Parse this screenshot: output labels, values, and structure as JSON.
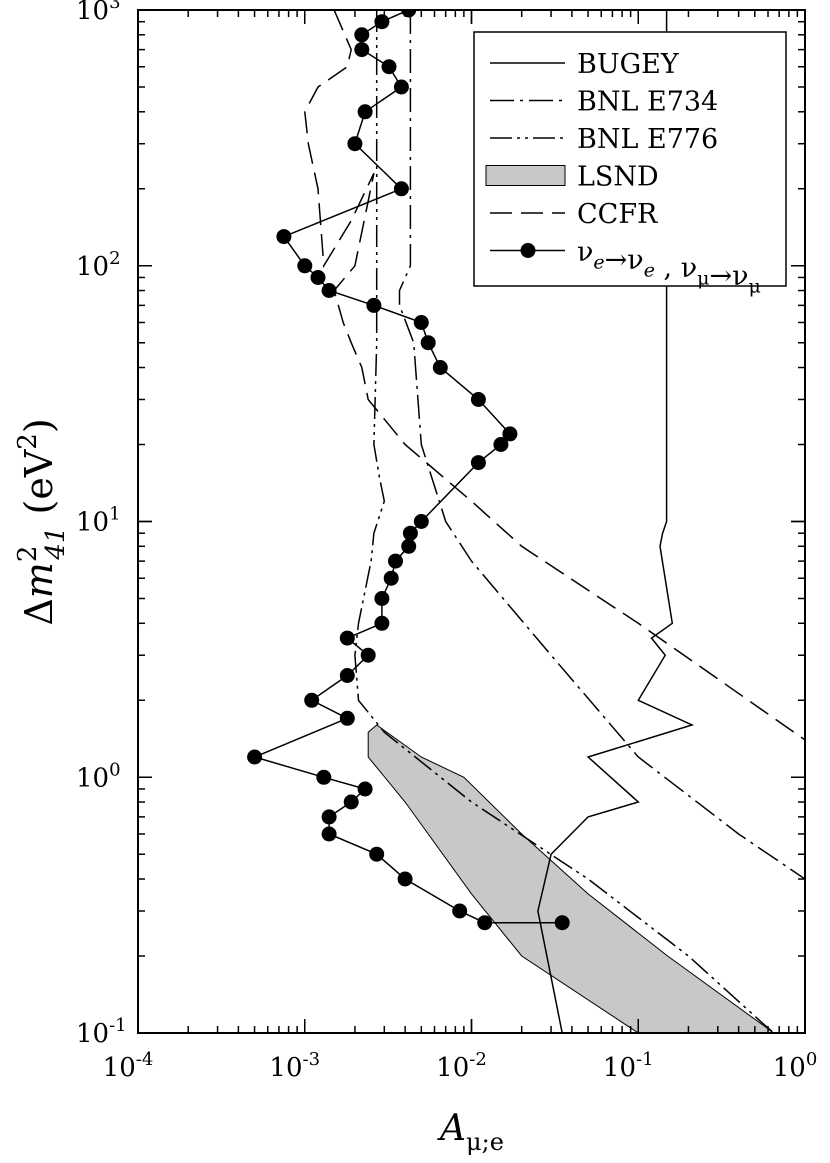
{
  "chart_data": {
    "type": "line",
    "xlabel": {
      "main": "A",
      "sub": "μ;e"
    },
    "ylabel": {
      "prefix": "Δ",
      "var": "m",
      "sup": "2",
      "sub": "41",
      "unit": " (eV",
      "unit_sup": "2",
      "unit_close": ")"
    },
    "x_scale": "log",
    "y_scale": "log",
    "xlim": [
      0.0001,
      1
    ],
    "ylim": [
      0.1,
      1000
    ],
    "grid": false,
    "legend_position": "top-right",
    "x_ticks": [
      {
        "value": 0.0001,
        "base": "10",
        "exp": "-4"
      },
      {
        "value": 0.001,
        "base": "10",
        "exp": "-3"
      },
      {
        "value": 0.01,
        "base": "10",
        "exp": "-2"
      },
      {
        "value": 0.1,
        "base": "10",
        "exp": "-1"
      },
      {
        "value": 1,
        "base": "10",
        "exp": "0"
      }
    ],
    "y_ticks": [
      {
        "value": 0.1,
        "base": "10",
        "exp": "-1"
      },
      {
        "value": 1,
        "base": "10",
        "exp": "0"
      },
      {
        "value": 10,
        "base": "10",
        "exp": "1"
      },
      {
        "value": 100,
        "base": "10",
        "exp": "2"
      },
      {
        "value": 1000,
        "base": "10",
        "exp": "3"
      }
    ],
    "series": [
      {
        "name": "BUGEY",
        "style": "solid",
        "points": [
          [
            0.148,
            1000
          ],
          [
            0.148,
            10
          ],
          [
            0.14,
            9
          ],
          [
            0.135,
            8
          ],
          [
            0.16,
            4
          ],
          [
            0.12,
            3.5
          ],
          [
            0.145,
            3
          ],
          [
            0.1,
            2
          ],
          [
            0.21,
            1.6
          ],
          [
            0.05,
            1.2
          ],
          [
            0.1,
            0.8
          ],
          [
            0.05,
            0.7
          ],
          [
            0.03,
            0.5
          ],
          [
            0.025,
            0.3
          ],
          [
            0.035,
            0.1
          ]
        ]
      },
      {
        "name": "BNL E734",
        "style": "dashdot",
        "points": [
          [
            0.0043,
            1000
          ],
          [
            0.0043,
            100
          ],
          [
            0.0037,
            80
          ],
          [
            0.0037,
            70
          ],
          [
            0.0045,
            50
          ],
          [
            0.005,
            20
          ],
          [
            0.007,
            10
          ],
          [
            0.01,
            7
          ],
          [
            0.03,
            3
          ],
          [
            0.1,
            1.2
          ],
          [
            0.4,
            0.6
          ],
          [
            1.0,
            0.4
          ]
        ]
      },
      {
        "name": "BNL E776",
        "style": "dashdotdot",
        "points": [
          [
            0.0027,
            1000
          ],
          [
            0.0027,
            100
          ],
          [
            0.0027,
            50
          ],
          [
            0.0026,
            20
          ],
          [
            0.0028,
            15
          ],
          [
            0.003,
            12
          ],
          [
            0.0026,
            9
          ],
          [
            0.0025,
            7
          ],
          [
            0.0021,
            4
          ],
          [
            0.002,
            3
          ],
          [
            0.0021,
            2
          ],
          [
            0.003,
            1.5
          ],
          [
            0.01,
            0.8
          ],
          [
            0.05,
            0.4
          ],
          [
            0.2,
            0.2
          ],
          [
            0.55,
            0.11
          ],
          [
            0.65,
            0.1
          ]
        ]
      },
      {
        "name": "CCFR",
        "style": "dashed",
        "points": [
          [
            0.0015,
            1000
          ],
          [
            0.0019,
            700
          ],
          [
            0.0018,
            600
          ],
          [
            0.0012,
            500
          ],
          [
            0.001,
            400
          ],
          [
            0.00105,
            300
          ],
          [
            0.0012,
            200
          ],
          [
            0.0013,
            100
          ],
          [
            0.0019,
            150
          ],
          [
            0.0026,
            230
          ],
          [
            0.002,
            100
          ],
          [
            0.0015,
            80
          ],
          [
            0.0017,
            60
          ],
          [
            0.0019,
            50
          ],
          [
            0.0022,
            40
          ],
          [
            0.0024,
            30
          ],
          [
            0.004,
            20
          ],
          [
            0.01,
            12
          ],
          [
            0.02,
            8
          ],
          [
            0.1,
            4
          ],
          [
            1.0,
            1.4
          ]
        ]
      },
      {
        "name": "LSND",
        "style": "band",
        "polygon": [
          [
            0.0024,
            1.5
          ],
          [
            0.0027,
            1.6
          ],
          [
            0.005,
            1.2
          ],
          [
            0.009,
            1.0
          ],
          [
            0.02,
            0.6
          ],
          [
            0.05,
            0.35
          ],
          [
            0.15,
            0.2
          ],
          [
            0.65,
            0.1
          ],
          [
            0.1,
            0.1
          ],
          [
            0.02,
            0.2
          ],
          [
            0.01,
            0.35
          ],
          [
            0.004,
            0.8
          ],
          [
            0.0024,
            1.2
          ]
        ]
      },
      {
        "name": "ν_e→ν_e , ν_μ→ν_μ",
        "style": "markers",
        "points": [
          [
            0.0042,
            1000
          ],
          [
            0.0029,
            900
          ],
          [
            0.0022,
            800
          ],
          [
            0.0022,
            700
          ],
          [
            0.0032,
            600
          ],
          [
            0.0038,
            500
          ],
          [
            0.0023,
            400
          ],
          [
            0.002,
            300
          ],
          [
            0.0038,
            200
          ],
          [
            0.00075,
            130
          ],
          [
            0.001,
            100
          ],
          [
            0.0012,
            90
          ],
          [
            0.0014,
            80
          ],
          [
            0.0026,
            70
          ],
          [
            0.005,
            60
          ],
          [
            0.0055,
            50
          ],
          [
            0.0065,
            40
          ],
          [
            0.011,
            30
          ],
          [
            0.017,
            22
          ],
          [
            0.015,
            20
          ],
          [
            0.011,
            17
          ],
          [
            0.005,
            10
          ],
          [
            0.0043,
            9
          ],
          [
            0.0042,
            8
          ],
          [
            0.0035,
            7
          ],
          [
            0.0033,
            6
          ],
          [
            0.0029,
            5
          ],
          [
            0.0029,
            4
          ],
          [
            0.0018,
            3.5
          ],
          [
            0.0024,
            3
          ],
          [
            0.0018,
            2.5
          ],
          [
            0.0011,
            2
          ],
          [
            0.0018,
            1.7
          ],
          [
            0.0005,
            1.2
          ],
          [
            0.0013,
            1.0
          ],
          [
            0.0023,
            0.9
          ],
          [
            0.0019,
            0.8
          ],
          [
            0.0014,
            0.7
          ],
          [
            0.0014,
            0.6
          ],
          [
            0.0027,
            0.5
          ],
          [
            0.004,
            0.4
          ],
          [
            0.0085,
            0.3
          ],
          [
            0.012,
            0.27
          ],
          [
            0.035,
            0.27
          ]
        ]
      }
    ],
    "legend": [
      {
        "label": "BUGEY",
        "style": "solid"
      },
      {
        "label": "BNL E734",
        "style": "dashdot"
      },
      {
        "label": "BNL E776",
        "style": "dashdotdot"
      },
      {
        "label": "LSND",
        "style": "band"
      },
      {
        "label": "CCFR",
        "style": "dashed"
      },
      {
        "label": "ν_e→ν_e , ν_μ→ν_μ",
        "style": "markers"
      }
    ]
  }
}
